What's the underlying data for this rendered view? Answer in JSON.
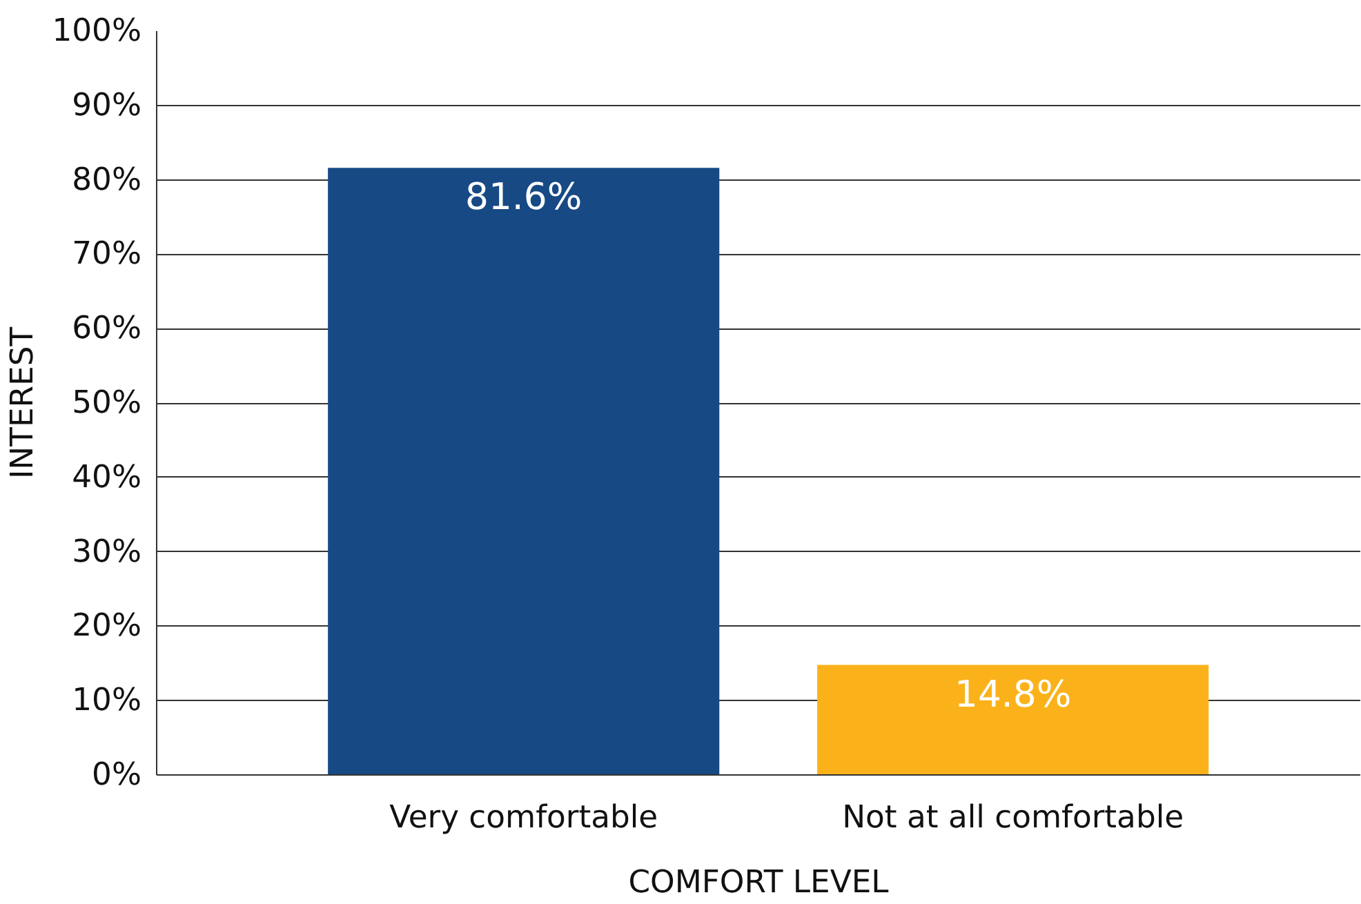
{
  "chart_data": {
    "type": "bar",
    "xlabel": "COMFORT LEVEL",
    "ylabel": "INTEREST",
    "categories": [
      "Very comfortable",
      "Not at all comfortable"
    ],
    "values": [
      81.6,
      14.8
    ],
    "colors": [
      "#174a84",
      "#fbb21a"
    ],
    "value_labels": [
      "81.6%",
      "14.8%"
    ],
    "ylim": [
      0,
      100
    ],
    "yticks": [
      {
        "value": 0,
        "label": "0%"
      },
      {
        "value": 10,
        "label": "10%"
      },
      {
        "value": 20,
        "label": "20%"
      },
      {
        "value": 30,
        "label": "30%"
      },
      {
        "value": 40,
        "label": "40%"
      },
      {
        "value": 50,
        "label": "50%"
      },
      {
        "value": 60,
        "label": "60%"
      },
      {
        "value": 70,
        "label": "70%"
      },
      {
        "value": 80,
        "label": "80%"
      },
      {
        "value": 90,
        "label": "90%"
      },
      {
        "value": 100,
        "label": "100%"
      }
    ],
    "grid": "y"
  }
}
